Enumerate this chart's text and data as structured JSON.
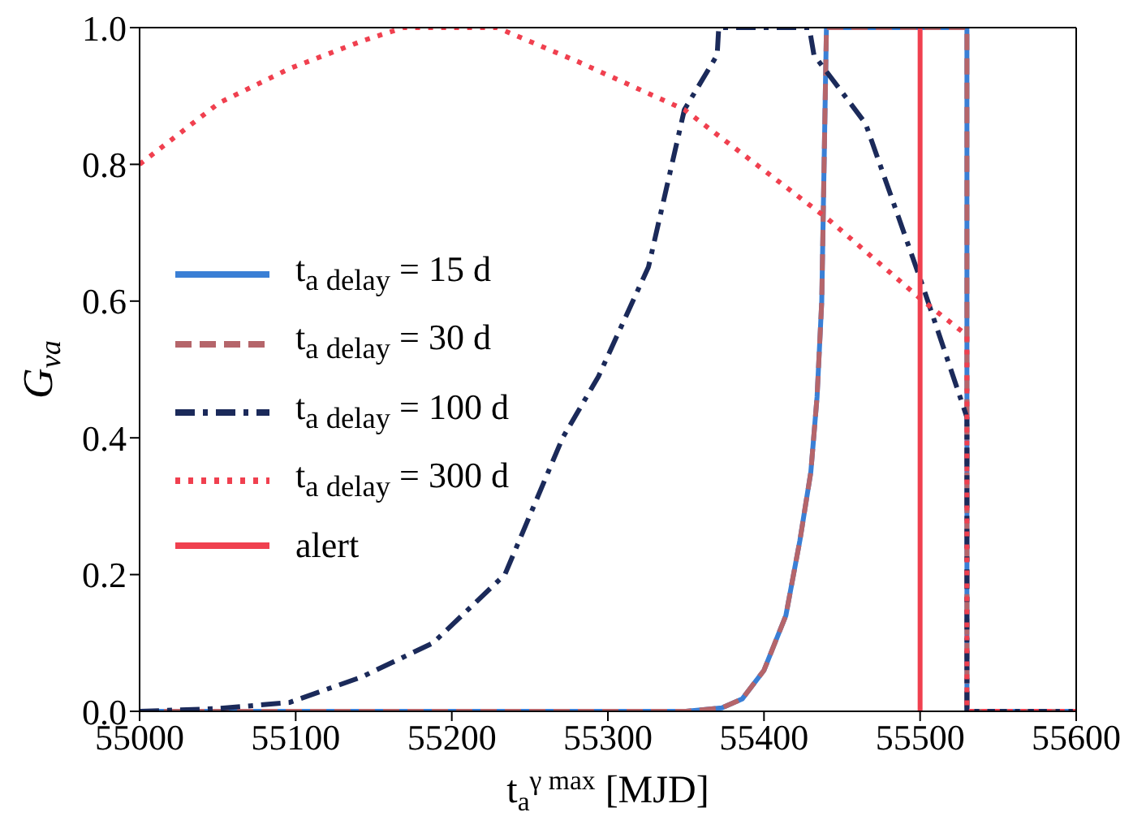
{
  "chart_data": {
    "type": "line",
    "xlabel": "t$_{a}$$^{γ max}$ [MJD]",
    "ylabel": "G$_{νa}$",
    "xlim": [
      55000,
      55600
    ],
    "xticks": [
      55000,
      55100,
      55200,
      55300,
      55400,
      55500,
      55600
    ],
    "ylim": [
      0,
      1.0
    ],
    "yticks": [
      {
        "value": 0,
        "label": "0.0"
      },
      0.2,
      0.4,
      0.6,
      0.8,
      {
        "value": 1,
        "label": "1.0"
      }
    ],
    "legend": "center left",
    "series": [
      {
        "name": "t$_{a delay}$ = 15 d",
        "color": "#3a7fd5",
        "line_style": "solid",
        "x": [
          55000,
          55300,
          55350,
          55373,
          55386,
          55400,
          55414,
          55423,
          55430,
          55434,
          55437,
          55440,
          55530,
          55530,
          55600
        ],
        "values": [
          0,
          0,
          0,
          0.005,
          0.018,
          0.06,
          0.14,
          0.25,
          0.35,
          0.46,
          0.6,
          1.0,
          1.0,
          0,
          0
        ]
      },
      {
        "name": "t$_{a delay}$ = 30 d",
        "color": "#b5656a",
        "line_style": "dashed",
        "x": [
          55000,
          55300,
          55350,
          55373,
          55386,
          55400,
          55414,
          55423,
          55430,
          55434,
          55437,
          55440,
          55530,
          55530,
          55600
        ],
        "values": [
          0,
          0,
          0,
          0.005,
          0.018,
          0.06,
          0.14,
          0.25,
          0.35,
          0.46,
          0.6,
          1.0,
          1.0,
          0,
          0
        ]
      },
      {
        "name": "t$_{a delay}$ = 100 d",
        "color": "#1b2a5a",
        "line_style": "dashdot",
        "x": [
          55000,
          55050,
          55096,
          55142,
          55188,
          55234,
          55271,
          55294,
          55326,
          55349,
          55370,
          55371,
          55429,
          55432,
          55465,
          55502,
          55530,
          55530,
          55600
        ],
        "values": [
          0,
          0.004,
          0.013,
          0.05,
          0.1,
          0.2,
          0.4,
          0.49,
          0.65,
          0.88,
          0.96,
          1.0,
          1.0,
          0.96,
          0.86,
          0.62,
          0.43,
          0,
          0
        ]
      },
      {
        "name": "t$_{a delay}$ = 300 d",
        "color": "#f0404f",
        "line_style": "dotted",
        "x": [
          55000,
          55051,
          55096,
          55142,
          55169,
          55229,
          55281,
          55349,
          55441,
          55502,
          55530,
          55530,
          55600
        ],
        "values": [
          0.8,
          0.89,
          0.94,
          0.98,
          1.0,
          1.0,
          0.95,
          0.88,
          0.72,
          0.6,
          0.55,
          0,
          0
        ]
      },
      {
        "name": "alert",
        "color": "#f0404f",
        "line_style": "solid",
        "x": [
          55500,
          55500
        ],
        "values": [
          0,
          1.0
        ]
      }
    ]
  }
}
